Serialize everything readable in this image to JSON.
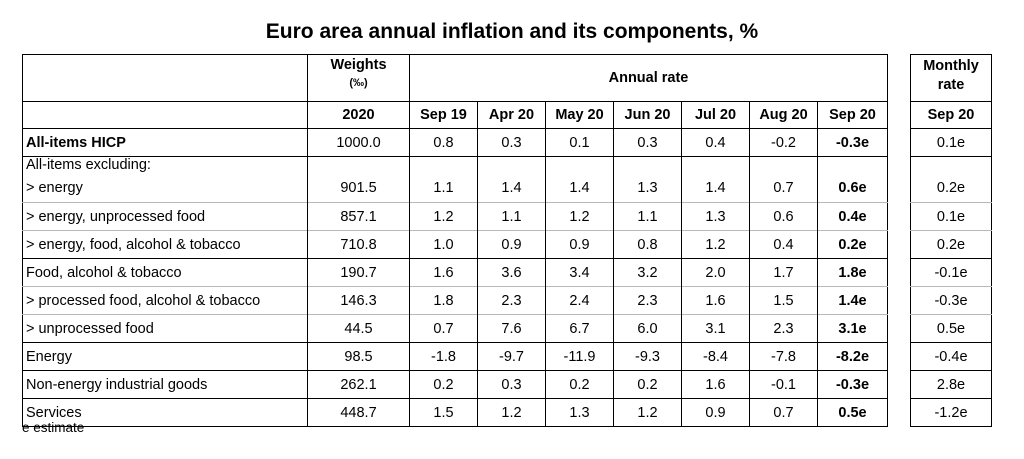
{
  "title": "Euro area annual inflation and its components, %",
  "header": {
    "weights_label": "Weights",
    "weights_unit": "(‰)",
    "weights_year": "2020",
    "annual_rate_label": "Annual rate",
    "months": [
      "Sep 19",
      "Apr 20",
      "May 20",
      "Jun 20",
      "Jul 20",
      "Aug 20",
      "Sep 20"
    ],
    "monthly_rate_label_line1": "Monthly",
    "monthly_rate_label_line2": "rate",
    "monthly_month": "Sep 20"
  },
  "rows": [
    {
      "name": "All-items HICP",
      "weight": "1000.0",
      "rates": [
        "0.8",
        "0.3",
        "0.1",
        "0.3",
        "0.4",
        "-0.2",
        "-0.3e"
      ],
      "monthly": "0.1e"
    },
    {
      "name": "All-items excluding:",
      "weight": "",
      "rates": [
        "",
        "",
        "",
        "",
        "",
        "",
        ""
      ],
      "monthly": ""
    },
    {
      "name": "> energy",
      "weight": "901.5",
      "rates": [
        "1.1",
        "1.4",
        "1.4",
        "1.3",
        "1.4",
        "0.7",
        "0.6e"
      ],
      "monthly": "0.2e"
    },
    {
      "name": "> energy, unprocessed food",
      "weight": "857.1",
      "rates": [
        "1.2",
        "1.1",
        "1.2",
        "1.1",
        "1.3",
        "0.6",
        "0.4e"
      ],
      "monthly": "0.1e"
    },
    {
      "name": "> energy, food, alcohol & tobacco",
      "weight": "710.8",
      "rates": [
        "1.0",
        "0.9",
        "0.9",
        "0.8",
        "1.2",
        "0.4",
        "0.2e"
      ],
      "monthly": "0.2e"
    },
    {
      "name": "Food, alcohol & tobacco",
      "weight": "190.7",
      "rates": [
        "1.6",
        "3.6",
        "3.4",
        "3.2",
        "2.0",
        "1.7",
        "1.8e"
      ],
      "monthly": "-0.1e"
    },
    {
      "name": "> processed food, alcohol & tobacco",
      "weight": "146.3",
      "rates": [
        "1.8",
        "2.3",
        "2.4",
        "2.3",
        "1.6",
        "1.5",
        "1.4e"
      ],
      "monthly": "-0.3e"
    },
    {
      "name": "> unprocessed food",
      "weight": "44.5",
      "rates": [
        "0.7",
        "7.6",
        "6.7",
        "6.0",
        "3.1",
        "2.3",
        "3.1e"
      ],
      "monthly": "0.5e"
    },
    {
      "name": "Energy",
      "weight": "98.5",
      "rates": [
        "-1.8",
        "-9.7",
        "-11.9",
        "-9.3",
        "-8.4",
        "-7.8",
        "-8.2e"
      ],
      "monthly": "-0.4e"
    },
    {
      "name": "Non-energy industrial goods",
      "weight": "262.1",
      "rates": [
        "0.2",
        "0.3",
        "0.2",
        "0.2",
        "1.6",
        "-0.1",
        "-0.3e"
      ],
      "monthly": "2.8e"
    },
    {
      "name": "Services",
      "weight": "448.7",
      "rates": [
        "1.5",
        "1.2",
        "1.3",
        "1.2",
        "0.9",
        "0.7",
        "0.5e"
      ],
      "monthly": "-1.2e"
    }
  ],
  "footnote": "e estimate"
}
